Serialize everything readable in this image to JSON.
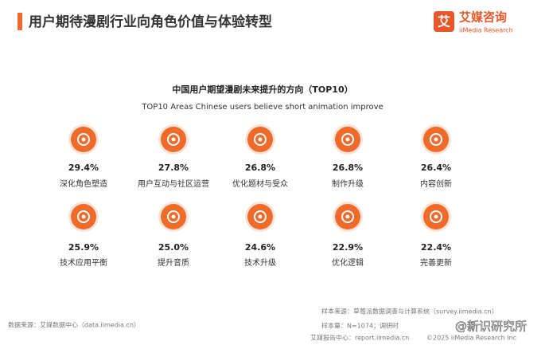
{
  "header": {
    "title": "用户期待漫剧行业向角色价值与体验转型",
    "logo": "艾媒咨询",
    "logo_en": "iiMedia Research"
  },
  "figure": {
    "title": "中国用户期望漫剧未来提升的方向（TOP10）",
    "subtitle": "TOP10 Areas Chinese users believe short animation improve",
    "items": [
      {
        "value": "29.4%",
        "label": "深化角色塑造"
      },
      {
        "value": "27.8%",
        "label": "用户互动与社区运营"
      },
      {
        "value": "26.8%",
        "label": "优化题材与受众"
      },
      {
        "value": "26.8%",
        "label": "制作升级"
      },
      {
        "value": "26.4%",
        "label": "内容创新"
      },
      {
        "value": "25.9%",
        "label": "技术应用平衡"
      },
      {
        "value": "25.0%",
        "label": "提升音质"
      },
      {
        "value": "24.6%",
        "label": "技术升级"
      },
      {
        "value": "22.9%",
        "label": "优化逻辑"
      },
      {
        "value": "22.4%",
        "label": "完善更新"
      }
    ]
  },
  "footer": {
    "source": "数据来源：艾媒数据中心（data.iimedia.cn）",
    "sample_source": "样本来源：草莓派数据调查与计算系统（survey.iimedia.cn）",
    "sample_size": "样本量：N=1074；调研时",
    "report_center": "艾媒报告中心：report.iimedia.cn",
    "copyright": "©2025  iiMedia Research Inc",
    "watermark": "@新识研究所"
  }
}
